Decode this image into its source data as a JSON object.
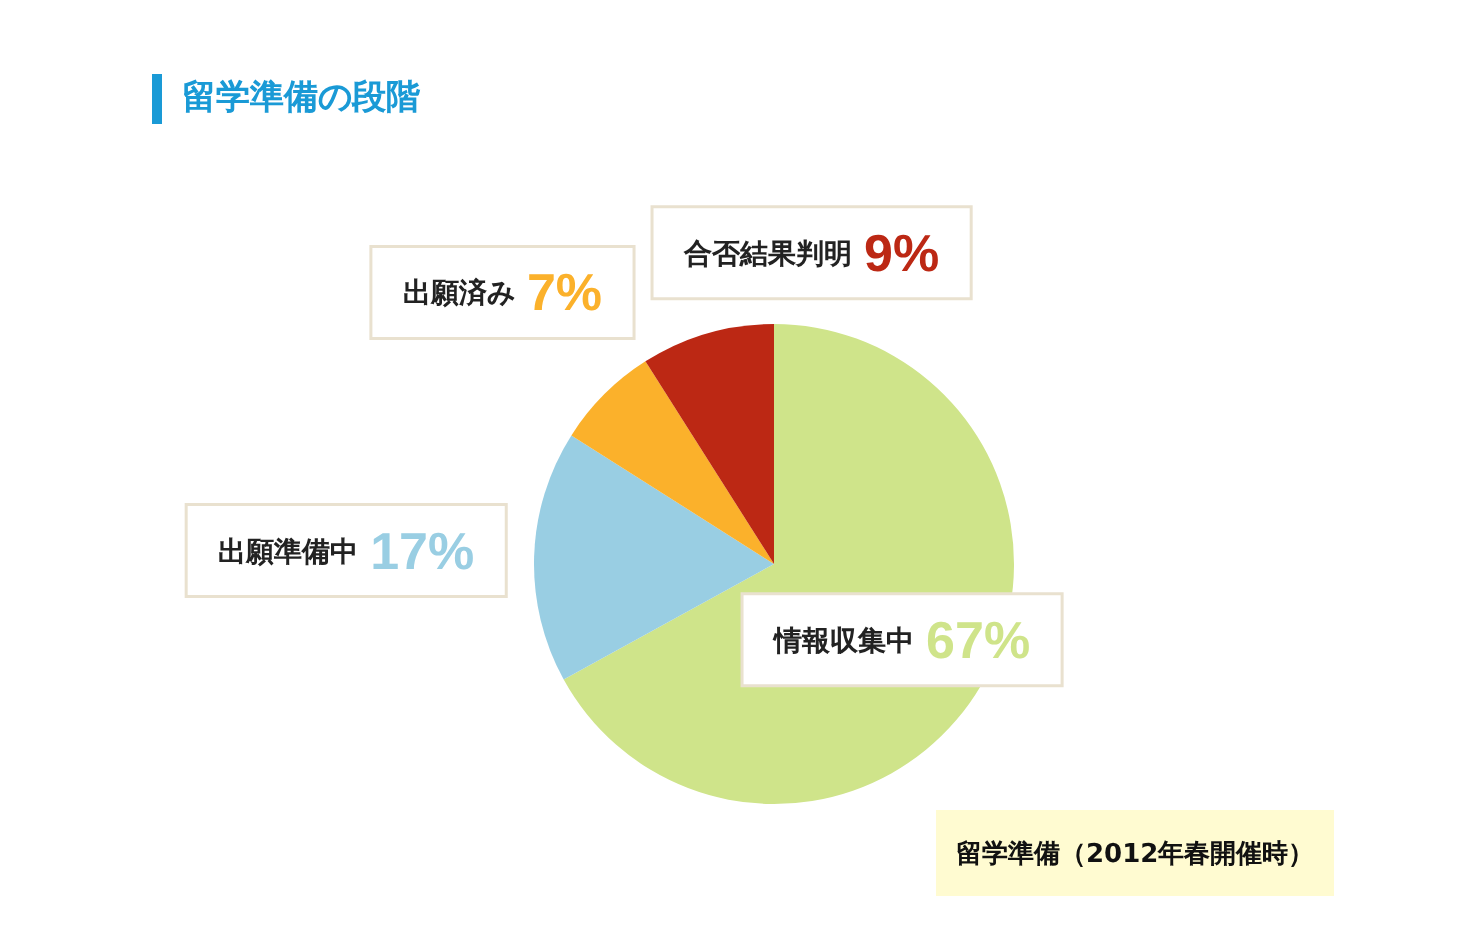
{
  "chart_data": {
    "type": "pie",
    "title": "留学準備の段階",
    "categories": [
      "情報収集中",
      "出願準備中",
      "出願済み",
      "合否結果判明"
    ],
    "values": [
      67,
      17,
      7,
      9
    ],
    "colors": [
      "#cfe48a",
      "#99cee3",
      "#fbb12b",
      "#bc2814"
    ],
    "value_labels": [
      "67%",
      "17%",
      "7%",
      "9%"
    ],
    "annotations": [
      "留学準備（2012年春開催時）"
    ]
  }
}
